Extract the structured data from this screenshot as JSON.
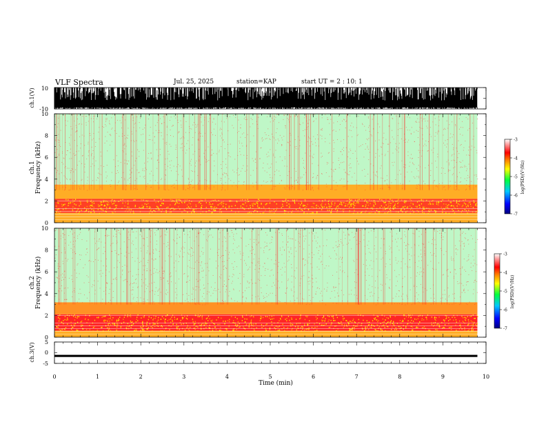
{
  "header": {
    "title": "VLF Spectra",
    "date": "Jul. 25, 2025",
    "station": "station=KAP",
    "start": "start UT =  2 : 10: 1"
  },
  "chart_data": [
    {
      "id": "ch1-waveform",
      "type": "line",
      "ylabel": "ch.1(V)",
      "ylim": [
        -10,
        10
      ],
      "yticks": [
        "10",
        "-10"
      ],
      "xlim": [
        0,
        10
      ],
      "description_series": "dense oscillation mostly between -10 and 7 V, clipping at +/-10 V"
    },
    {
      "id": "ch1-spectrogram",
      "type": "heatmap",
      "ylabel": "ch.1\nFrequency (kHz)",
      "ylabel_lines": [
        "ch.1",
        "Frequency (kHz)"
      ],
      "ylim": [
        0,
        10
      ],
      "yticks": [
        "0",
        "2",
        "4",
        "6",
        "8",
        "10"
      ],
      "xlim": [
        0,
        10
      ],
      "data_extent_min": 9.8,
      "colorbar": {
        "label": "log(PSD)(V²/Hz)",
        "range": [
          -7,
          -3
        ],
        "ticks": [
          "-3",
          "-4",
          "-5",
          "-6",
          "-7"
        ]
      },
      "bands": [
        {
          "fmin": 0.0,
          "fmax": 0.9,
          "level": -4.3
        },
        {
          "fmin": 0.9,
          "fmax": 2.2,
          "level": -3.9
        },
        {
          "fmin": 2.2,
          "fmax": 3.5,
          "level": -4.3
        },
        {
          "fmin": 3.5,
          "fmax": 10.0,
          "level": -5.2
        }
      ]
    },
    {
      "id": "ch2-spectrogram",
      "type": "heatmap",
      "ylabel": "ch.2\nFrequency (kHz)",
      "ylabel_lines": [
        "ch.2",
        "Frequency (kHz)"
      ],
      "ylim": [
        0,
        10
      ],
      "yticks": [
        "0",
        "2",
        "4",
        "6",
        "8",
        "10"
      ],
      "xlim": [
        0,
        10
      ],
      "data_extent_min": 9.8,
      "colorbar": {
        "label": "log(PSD)(V²/Hz)",
        "range": [
          -7,
          -3
        ],
        "ticks": [
          "-3",
          "-4",
          "-5",
          "-6",
          "-7"
        ]
      },
      "bands": [
        {
          "fmin": 0.0,
          "fmax": 0.6,
          "level": -4.3
        },
        {
          "fmin": 0.6,
          "fmax": 2.1,
          "level": -3.8
        },
        {
          "fmin": 2.1,
          "fmax": 3.2,
          "level": -4.2
        },
        {
          "fmin": 3.2,
          "fmax": 10.0,
          "level": -5.2
        }
      ]
    },
    {
      "id": "ch3-waveform",
      "type": "line",
      "ylabel": "ch.3(V)",
      "ylim": [
        -5,
        5
      ],
      "yticks": [
        "5",
        "0",
        "-5"
      ],
      "xlim": [
        0,
        10
      ],
      "baseline_v": -1.5,
      "amplitude_v": 0.5
    }
  ],
  "xaxis": {
    "label": "Time (min)",
    "range": [
      0,
      10
    ],
    "ticks": [
      "0",
      "1",
      "2",
      "3",
      "4",
      "5",
      "6",
      "7",
      "8",
      "9",
      "10"
    ]
  }
}
